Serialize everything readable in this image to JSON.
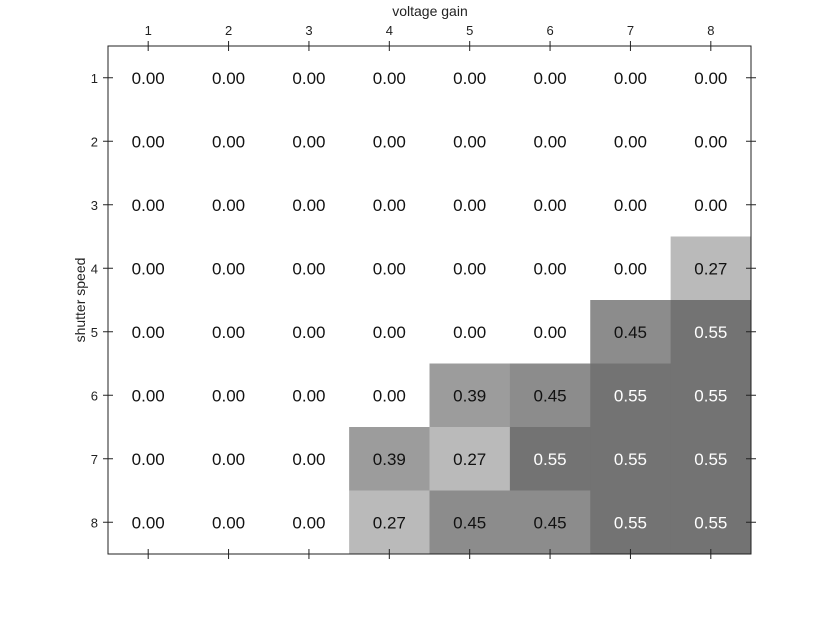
{
  "chart_data": {
    "type": "heatmap",
    "title": "",
    "xlabel": "voltage gain",
    "ylabel": "shutter speed",
    "x_categories": [
      "1",
      "2",
      "3",
      "4",
      "5",
      "6",
      "7",
      "8"
    ],
    "y_categories": [
      "1",
      "2",
      "3",
      "4",
      "5",
      "6",
      "7",
      "8"
    ],
    "values": [
      [
        0.0,
        0.0,
        0.0,
        0.0,
        0.0,
        0.0,
        0.0,
        0.0
      ],
      [
        0.0,
        0.0,
        0.0,
        0.0,
        0.0,
        0.0,
        0.0,
        0.0
      ],
      [
        0.0,
        0.0,
        0.0,
        0.0,
        0.0,
        0.0,
        0.0,
        0.0
      ],
      [
        0.0,
        0.0,
        0.0,
        0.0,
        0.0,
        0.0,
        0.0,
        0.27
      ],
      [
        0.0,
        0.0,
        0.0,
        0.0,
        0.0,
        0.0,
        0.45,
        0.55
      ],
      [
        0.0,
        0.0,
        0.0,
        0.0,
        0.39,
        0.45,
        0.55,
        0.55
      ],
      [
        0.0,
        0.0,
        0.0,
        0.39,
        0.27,
        0.55,
        0.55,
        0.55
      ],
      [
        0.0,
        0.0,
        0.0,
        0.27,
        0.45,
        0.45,
        0.55,
        0.55
      ]
    ],
    "value_format": "2 decimals",
    "colormap": "grayscale: 0 = #ffffff, higher = darker gray",
    "x_axis_position": "top",
    "grid": false,
    "legend": "none"
  }
}
